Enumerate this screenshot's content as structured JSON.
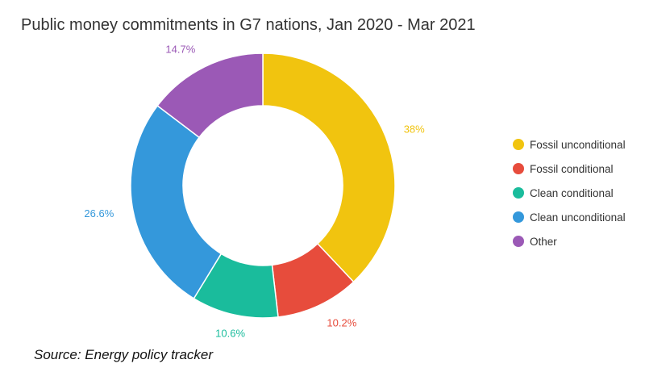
{
  "chart_data": {
    "type": "pie",
    "title": "Public money commitments in G7 nations, Jan 2020 - Mar 2021",
    "donut": true,
    "categories": [
      "Fossil unconditional",
      "Fossil conditional",
      "Clean conditional",
      "Clean unconditional",
      "Other"
    ],
    "values": [
      38,
      10.2,
      10.6,
      26.6,
      14.7
    ],
    "data_labels": [
      "38%",
      "10.2%",
      "10.6%",
      "26.6%",
      "14.7%"
    ],
    "colors": [
      "#f1c40f",
      "#e74c3c",
      "#1abc9c",
      "#3498db",
      "#9b59b6"
    ],
    "legend_position": "right"
  },
  "source_note": "Source: Energy policy tracker"
}
